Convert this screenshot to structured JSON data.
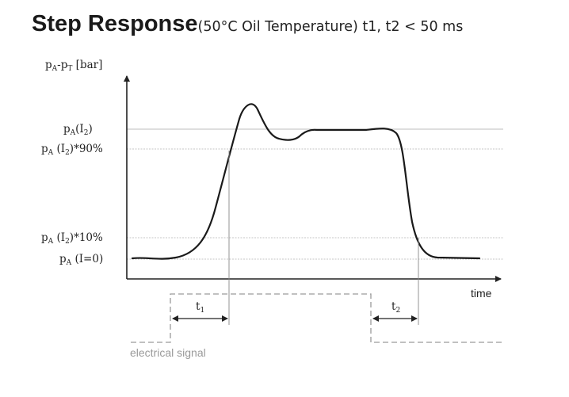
{
  "header": {
    "title": "Step Response",
    "subtitle": "(50°C Oil Temperature) t1, t2 < 50 ms"
  },
  "diagram": {
    "y_axis_label": {
      "main": "p",
      "sub_a": "A",
      "dash": "-p",
      "sub_t": "T",
      "unit": " [bar]"
    },
    "x_axis_label": "time",
    "levels": [
      {
        "id": "full",
        "p": "p",
        "p_sub": "A",
        "arg": "(I",
        "arg_sub": "2",
        "tail": ")"
      },
      {
        "id": "p90",
        "p": "p",
        "p_sub": "A",
        "arg": " (I",
        "arg_sub": "2",
        "tail": ")*90%"
      },
      {
        "id": "p10",
        "p": "p",
        "p_sub": "A",
        "arg": " (I",
        "arg_sub": "2",
        "tail": ")*10%"
      },
      {
        "id": "zero",
        "p": "p",
        "p_sub": "A",
        "arg": " (I=0)",
        "arg_sub": "",
        "tail": ""
      }
    ],
    "t1": {
      "main": "t",
      "sub": "1"
    },
    "t2": {
      "main": "t",
      "sub": "2"
    },
    "signal_label": "electrical signal",
    "colors": {
      "curve": "#1a1a1a",
      "grid": "#b5b5b5",
      "signal": "#9a9a9a",
      "axis": "#222222"
    }
  }
}
